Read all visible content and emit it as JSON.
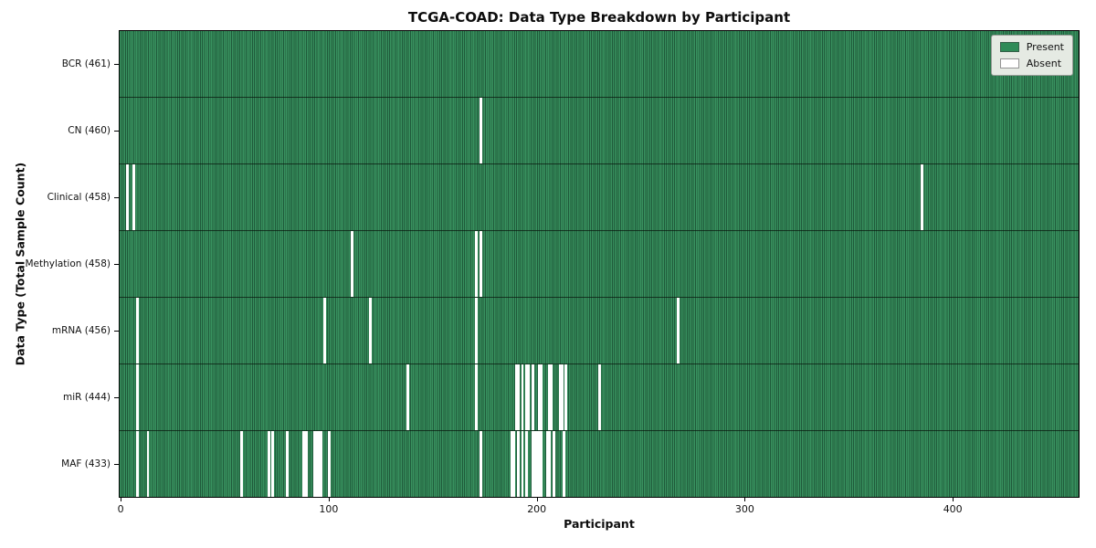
{
  "chart_data": {
    "type": "heatmap",
    "title": "TCGA-COAD: Data Type Breakdown by Participant",
    "xlabel": "Participant",
    "ylabel": "Data Type (Total Sample Count)",
    "n_participants": 461,
    "x_ticks": [
      0,
      100,
      200,
      300,
      400
    ],
    "grid": false,
    "colors": {
      "present": "#2e8b57",
      "present_stripe": "#38915f",
      "cell_edge": "#1f5a3a",
      "absent": "#ffffff",
      "plot_border": "#000000"
    },
    "legend": {
      "position": "upper right",
      "items": [
        {
          "label": "Present",
          "color": "#2e8b57"
        },
        {
          "label": "Absent",
          "color": "#ffffff"
        }
      ]
    },
    "rows": [
      {
        "name": "BCR",
        "label": "BCR (461)",
        "present_count": 461,
        "absent_participants": []
      },
      {
        "name": "CN",
        "label": "CN (460)",
        "present_count": 460,
        "absent_participants": [
          173
        ]
      },
      {
        "name": "Clinical",
        "label": "Clinical (458)",
        "present_count": 458,
        "absent_participants": [
          3,
          6,
          385
        ]
      },
      {
        "name": "Methylation",
        "label": "Methylation (458)",
        "present_count": 458,
        "absent_participants": [
          111,
          171,
          173
        ]
      },
      {
        "name": "mRNA",
        "label": "mRNA (456)",
        "present_count": 456,
        "absent_participants": [
          8,
          98,
          120,
          171,
          268
        ]
      },
      {
        "name": "miR",
        "label": "miR (444)",
        "present_count": 444,
        "absent_participants": [
          8,
          138,
          171,
          190,
          191,
          193,
          195,
          196,
          198,
          201,
          202,
          206,
          207,
          211,
          212,
          214,
          230
        ]
      },
      {
        "name": "MAF",
        "label": "MAF (433)",
        "present_count": 433,
        "absent_participants": [
          8,
          13,
          58,
          71,
          73,
          80,
          88,
          89,
          93,
          94,
          95,
          96,
          100,
          173,
          188,
          189,
          191,
          193,
          195,
          198,
          199,
          200,
          201,
          202,
          205,
          206,
          208,
          213
        ]
      }
    ]
  }
}
